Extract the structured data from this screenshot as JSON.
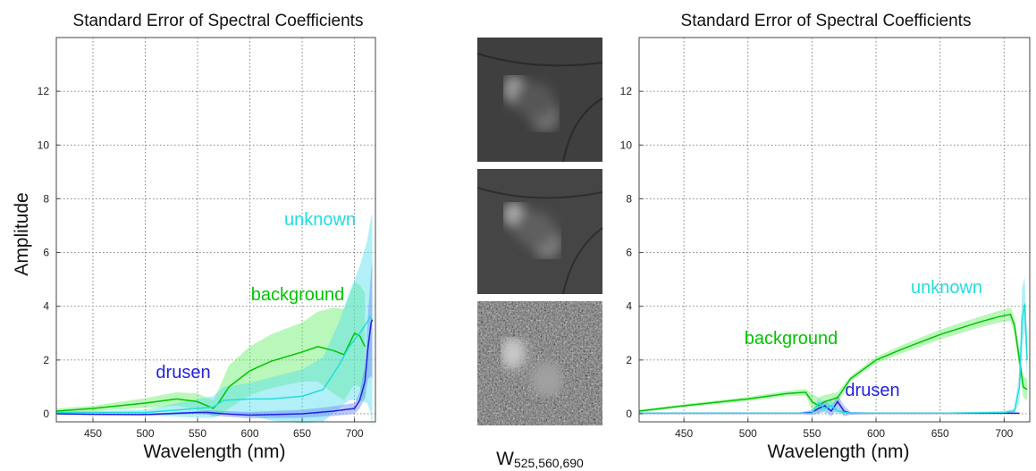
{
  "colors": {
    "background": "#00c400",
    "drusen": "#2222dd",
    "unknown": "#22dddd",
    "background_band": "#66ee66",
    "drusen_band": "#6688ff",
    "unknown_band": "#55ddee"
  },
  "middle_panel": {
    "caption_main": "W",
    "caption_sub": "525,560,690",
    "images": [
      "grayscale-fundus-image",
      "grayscale-fundus-image",
      "grayscale-fundus-image-noisy"
    ]
  },
  "chart_data": [
    {
      "type": "line",
      "title": "Standard Error of Spectral Coefficients",
      "xlabel": "Wavelength (nm)",
      "ylabel": "Amplitude",
      "xlim": [
        415,
        720
      ],
      "ylim": [
        -0.3,
        14
      ],
      "xticks": [
        450,
        500,
        550,
        600,
        650,
        700
      ],
      "yticks": [
        0,
        2,
        4,
        6,
        8,
        10,
        12
      ],
      "grid": true,
      "annotations": [
        {
          "text": "unknown",
          "series": "unknown"
        },
        {
          "text": "background",
          "series": "background"
        },
        {
          "text": "drusen",
          "series": "drusen"
        }
      ],
      "series": [
        {
          "name": "background",
          "x": [
            415,
            450,
            500,
            530,
            550,
            565,
            570,
            580,
            600,
            620,
            650,
            665,
            680,
            690,
            700,
            705,
            710
          ],
          "y": [
            0.1,
            0.2,
            0.4,
            0.55,
            0.45,
            0.2,
            0.4,
            1.0,
            1.6,
            1.95,
            2.3,
            2.5,
            2.35,
            2.2,
            3.0,
            2.9,
            2.5
          ],
          "err": [
            0.1,
            0.1,
            0.18,
            0.25,
            0.3,
            0.3,
            0.5,
            0.8,
            0.9,
            1.0,
            1.1,
            1.3,
            1.6,
            1.7,
            1.9,
            1.9,
            2.0
          ]
        },
        {
          "name": "unknown",
          "x": [
            415,
            450,
            500,
            550,
            565,
            575,
            600,
            620,
            650,
            670,
            685,
            695,
            705,
            712,
            715,
            717
          ],
          "y": [
            0.05,
            0.05,
            0.05,
            0.2,
            0.25,
            0.5,
            0.55,
            0.55,
            0.65,
            0.9,
            1.8,
            2.5,
            3.0,
            3.4,
            3.6,
            3.5
          ],
          "err": [
            0.05,
            0.05,
            0.1,
            0.35,
            0.4,
            0.5,
            0.6,
            0.8,
            1.0,
            1.2,
            1.6,
            2.0,
            2.5,
            3.0,
            3.5,
            4.0
          ]
        },
        {
          "name": "drusen",
          "x": [
            415,
            450,
            500,
            550,
            560,
            575,
            600,
            650,
            680,
            700,
            705,
            710,
            713,
            716,
            717
          ],
          "y": [
            0.0,
            -0.02,
            -0.03,
            0.05,
            0.05,
            0.0,
            -0.05,
            0.0,
            0.1,
            0.2,
            0.5,
            1.2,
            2.5,
            3.4,
            3.5
          ],
          "err": [
            0.02,
            0.02,
            0.03,
            0.05,
            0.08,
            0.1,
            0.12,
            0.15,
            0.18,
            0.2,
            0.3,
            0.6,
            1.2,
            2.0,
            2.2
          ]
        }
      ]
    },
    {
      "type": "line",
      "title": "Standard Error of Spectral Coefficients",
      "xlabel": "Wavelength (nm)",
      "ylabel": "",
      "xlim": [
        415,
        720
      ],
      "ylim": [
        -0.3,
        14
      ],
      "xticks": [
        450,
        500,
        550,
        600,
        650,
        700
      ],
      "yticks": [
        0,
        2,
        4,
        6,
        8,
        10,
        12
      ],
      "grid": true,
      "annotations": [
        {
          "text": "unknown",
          "series": "unknown"
        },
        {
          "text": "background",
          "series": "background"
        },
        {
          "text": "drusen",
          "series": "drusen"
        }
      ],
      "series": [
        {
          "name": "background",
          "x": [
            415,
            450,
            500,
            530,
            545,
            550,
            555,
            560,
            570,
            580,
            600,
            620,
            650,
            680,
            695,
            705,
            708,
            712,
            715,
            718
          ],
          "y": [
            0.1,
            0.3,
            0.55,
            0.75,
            0.8,
            0.45,
            0.3,
            0.45,
            0.6,
            1.3,
            2.0,
            2.4,
            2.95,
            3.4,
            3.6,
            3.7,
            3.3,
            2.0,
            1.0,
            0.9
          ],
          "err": [
            0.05,
            0.06,
            0.08,
            0.1,
            0.12,
            0.3,
            0.3,
            0.25,
            0.2,
            0.1,
            0.12,
            0.15,
            0.18,
            0.2,
            0.22,
            0.25,
            0.3,
            0.4,
            0.4,
            0.4
          ]
        },
        {
          "name": "drusen",
          "x": [
            415,
            450,
            500,
            540,
            550,
            555,
            560,
            565,
            570,
            575,
            580,
            600,
            650,
            700,
            712
          ],
          "y": [
            0.02,
            0.02,
            0.02,
            0.02,
            0.05,
            0.2,
            0.3,
            0.1,
            0.45,
            0.1,
            0.02,
            0.02,
            0.02,
            0.02,
            0.02
          ],
          "err": [
            0.01,
            0.01,
            0.01,
            0.02,
            0.1,
            0.2,
            0.2,
            0.2,
            0.25,
            0.2,
            0.05,
            0.02,
            0.02,
            0.02,
            0.02
          ]
        },
        {
          "name": "unknown",
          "x": [
            415,
            500,
            550,
            555,
            560,
            565,
            570,
            580,
            600,
            650,
            700,
            708,
            712,
            714,
            716,
            718
          ],
          "y": [
            0.02,
            0.02,
            0.02,
            0.4,
            0.2,
            0.3,
            0.1,
            0.02,
            0.02,
            0.02,
            0.05,
            0.1,
            1.0,
            3.5,
            4.1,
            2.0
          ],
          "err": [
            0.01,
            0.01,
            0.02,
            0.2,
            0.2,
            0.2,
            0.1,
            0.02,
            0.02,
            0.02,
            0.05,
            0.1,
            0.6,
            1.2,
            1.0,
            0.8
          ]
        }
      ]
    }
  ]
}
